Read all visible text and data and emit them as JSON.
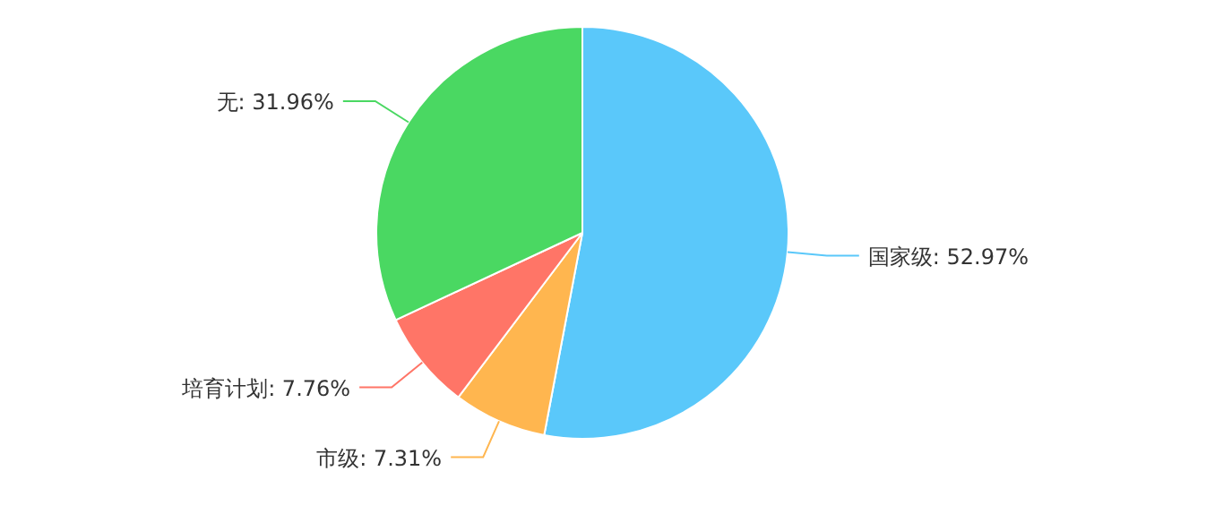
{
  "chart_data": {
    "type": "pie",
    "categories": [
      "国家级",
      "市级",
      "培育计划",
      "无"
    ],
    "values": [
      52.97,
      7.31,
      7.76,
      31.96
    ],
    "value_labels": [
      ": 52.97%",
      ": 7.31%",
      ": 7.76%",
      ": 31.96%"
    ],
    "colors": [
      "#5ac8fa",
      "#ffb64f",
      "#ff7567",
      "#4ad862"
    ]
  }
}
